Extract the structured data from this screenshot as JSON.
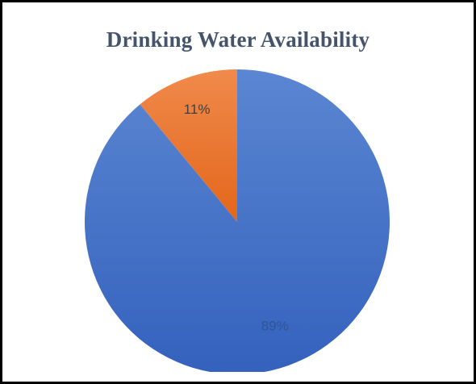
{
  "chart_data": {
    "type": "pie",
    "title": "Drinking Water Availability",
    "slices": [
      {
        "label": "89%",
        "value": 89,
        "color": "#4472c4"
      },
      {
        "label": "11%",
        "value": 11,
        "color": "#ed7d31"
      }
    ],
    "start_angle_deg": 0,
    "direction": "clockwise",
    "legend": "none"
  },
  "colors": {
    "title": "#44546a",
    "border": "#000000",
    "label_on_blue": "#2f5597",
    "label_on_orange": "#404040"
  }
}
